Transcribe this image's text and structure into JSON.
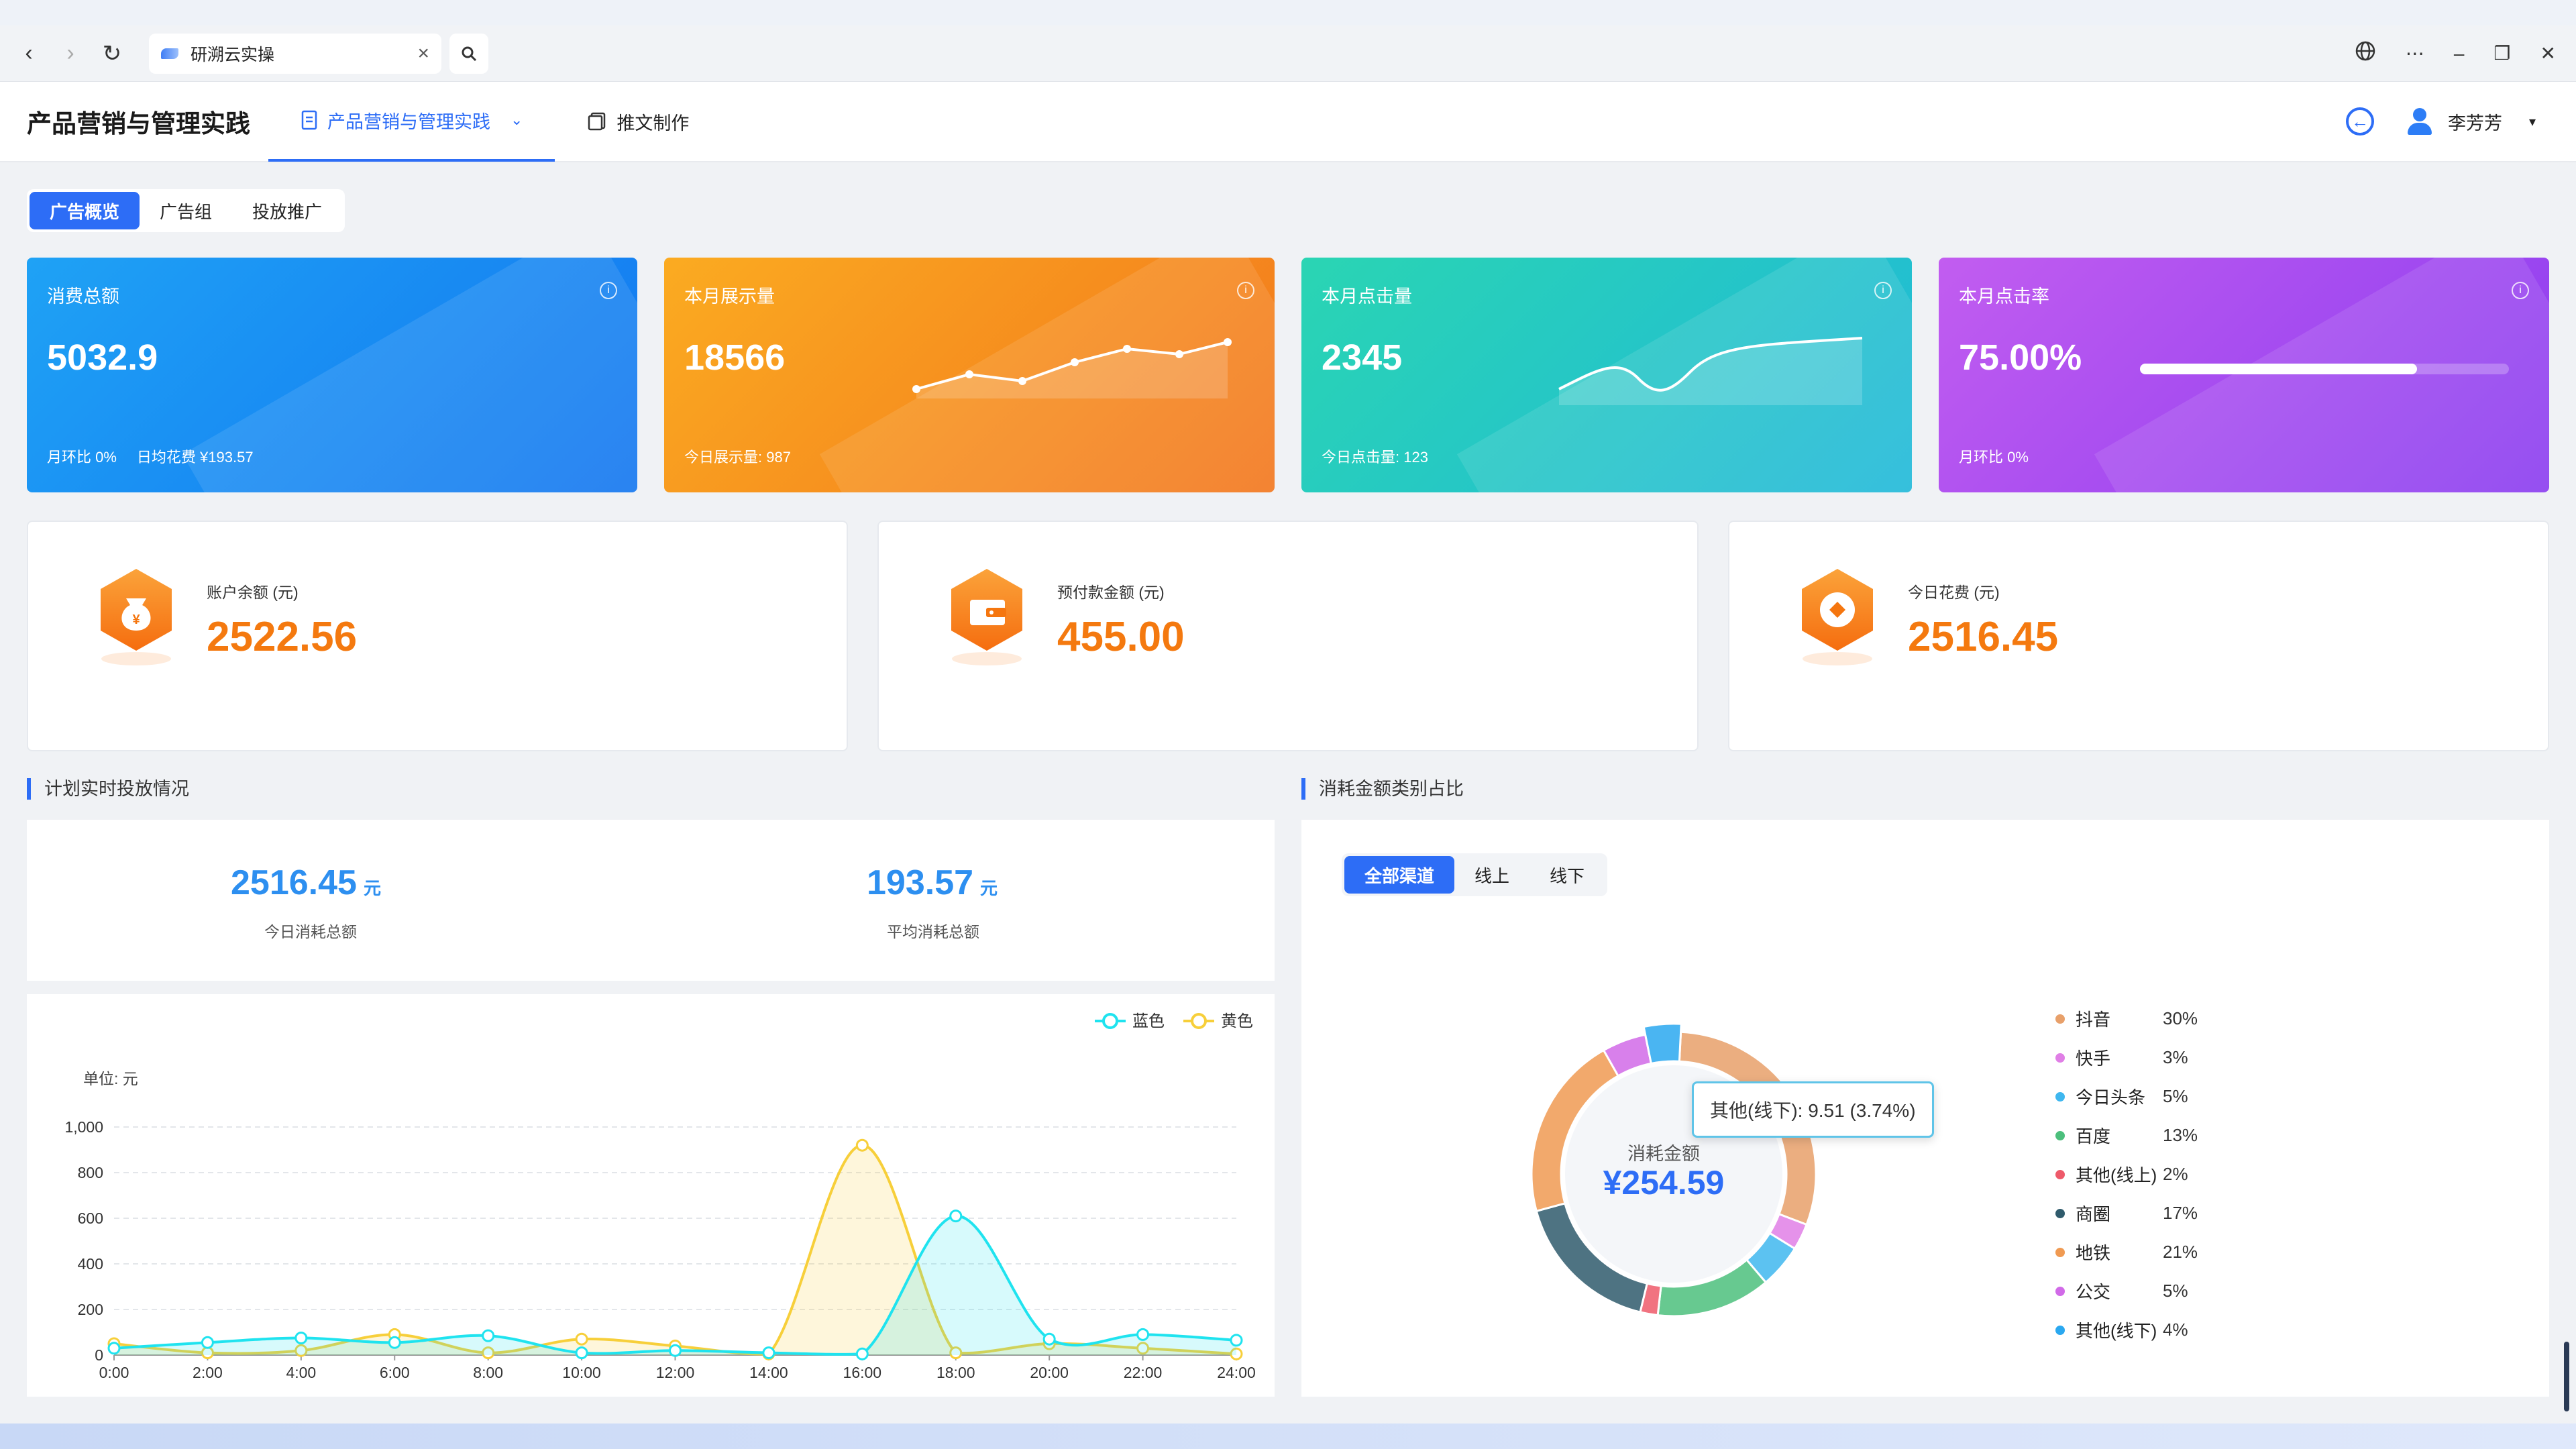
{
  "browser": {
    "tab_title": "研溯云实操",
    "icons": [
      "back-icon",
      "forward-icon",
      "reload-icon",
      "close-icon",
      "search-icon",
      "globe-icon",
      "more-icon",
      "minimize-icon",
      "restore-icon",
      "window-close-icon"
    ]
  },
  "header": {
    "app_title": "产品营销与管理实践",
    "tabs": [
      {
        "label": "产品营销与管理实践",
        "active": true
      },
      {
        "label": "推文制作",
        "active": false
      }
    ],
    "user_name": "李芳芳"
  },
  "ad_tabs": [
    {
      "label": "广告概览",
      "active": true
    },
    {
      "label": "广告组",
      "active": false
    },
    {
      "label": "投放推广",
      "active": false
    }
  ],
  "stat_cards": [
    {
      "label": "消费总额",
      "value": "5032.9",
      "foot": "月环比 0%",
      "foot2": "日均花费 ¥193.57",
      "colors": [
        "#1fa2f5",
        "#1278f0"
      ]
    },
    {
      "label": "本月展示量",
      "value": "18566",
      "foot": "今日展示量: 987",
      "colors": [
        "#fbab21",
        "#f27a1c"
      ]
    },
    {
      "label": "本月点击量",
      "value": "2345",
      "foot": "今日点击量: 123",
      "colors": [
        "#2ad5b3",
        "#22b9d8"
      ]
    },
    {
      "label": "本月点击率",
      "value": "75.00%",
      "foot": "月环比 0%",
      "progress": 0.75,
      "colors": [
        "#c25df0",
        "#8a3cf0"
      ]
    }
  ],
  "balance_cards": [
    {
      "label": "账户余额 (元)",
      "value": "2522.56",
      "icon": "money-bag-icon"
    },
    {
      "label": "预付款金额 (元)",
      "value": "455.00",
      "icon": "wallet-icon"
    },
    {
      "label": "今日花费 (元)",
      "value": "2516.45",
      "icon": "coin-icon"
    }
  ],
  "realtime": {
    "title": "计划实时投放情况",
    "today_total": "2516.45",
    "today_label": "今日消耗总额",
    "avg_total": "193.57",
    "avg_label": "平均消耗总额",
    "unit": "元"
  },
  "chart_data": {
    "type": "area",
    "unit_label": "单位: 元",
    "x": [
      "0:00",
      "2:00",
      "4:00",
      "6:00",
      "8:00",
      "10:00",
      "12:00",
      "14:00",
      "16:00",
      "18:00",
      "20:00",
      "22:00",
      "24:00"
    ],
    "ylim": [
      0,
      1000
    ],
    "yticks": [
      "0",
      "200",
      "400",
      "600",
      "800",
      "1,000"
    ],
    "series": [
      {
        "name": "蓝色",
        "color": "#1fe3ef",
        "values": [
          30,
          55,
          75,
          55,
          85,
          10,
          20,
          10,
          5,
          610,
          70,
          90,
          65
        ]
      },
      {
        "name": "黄色",
        "color": "#f7cf3a",
        "values": [
          50,
          10,
          20,
          90,
          10,
          70,
          40,
          5,
          920,
          10,
          50,
          30,
          5
        ]
      }
    ],
    "grid": true,
    "legend": "top-right"
  },
  "consumption": {
    "title": "消耗金额类别占比",
    "channel_tabs": [
      {
        "label": "全部渠道",
        "active": true
      },
      {
        "label": "线上",
        "active": false
      },
      {
        "label": "线下",
        "active": false
      }
    ],
    "center_label": "消耗金额",
    "center_value": "¥254.59",
    "tooltip": "其他(线下): 9.51 (3.74%)",
    "slices": [
      {
        "name": "抖音",
        "pct": "30%",
        "value": 30,
        "color": "#e8a06a"
      },
      {
        "name": "快手",
        "pct": "3%",
        "value": 3,
        "color": "#e07fe6"
      },
      {
        "name": "今日头条",
        "pct": "5%",
        "value": 5,
        "color": "#3fb7ef"
      },
      {
        "name": "百度",
        "pct": "13%",
        "value": 13,
        "color": "#4cbf7c"
      },
      {
        "name": "其他(线上)",
        "pct": "2%",
        "value": 2,
        "color": "#ee5a6a"
      },
      {
        "name": "商圈",
        "pct": "17%",
        "value": 17,
        "color": "#2f5b6c"
      },
      {
        "name": "地铁",
        "pct": "21%",
        "value": 21,
        "color": "#f09a52"
      },
      {
        "name": "公交",
        "pct": "5%",
        "value": 5,
        "color": "#d16ae8"
      },
      {
        "name": "其他(线下)",
        "pct": "4%",
        "value": 4,
        "color": "#2aa8f0"
      }
    ]
  }
}
